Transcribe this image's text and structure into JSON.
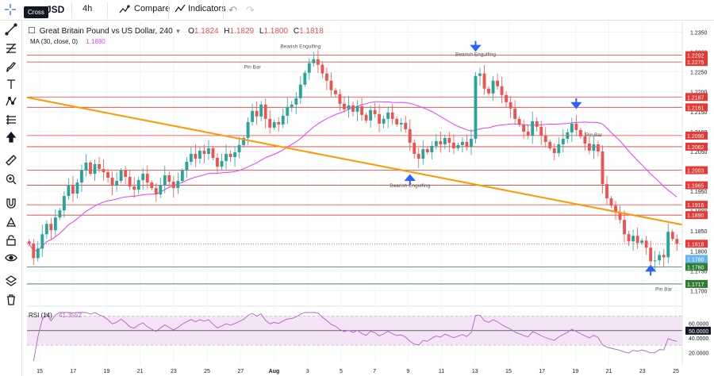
{
  "topbar": {
    "symbol_fragment": "JSD",
    "interval": "4h",
    "compare_label": "Compare",
    "indicators_label": "Indicators"
  },
  "tooltip": "Cross",
  "legend": {
    "title": "Great Britain Pound vs US Dollar, 240",
    "open_label": "O",
    "open": "1.1824",
    "high_label": "H",
    "high": "1.1829",
    "low_label": "L",
    "low": "1.1800",
    "close_label": "C",
    "close": "1.1818",
    "ma_label": "MA (30, close, 0)",
    "ma_value": "1.1880",
    "rsi_label": "RSI (14)",
    "rsi_value": "41.3552"
  },
  "colors": {
    "up": "#26a69a",
    "down": "#ef5350",
    "ma": "#e040fb",
    "trend": "#ff9800",
    "resistance": "#e53935",
    "support": "#2e7d32",
    "rsi_line": "#b45fc4",
    "rsi_fill": "#f3e5f5",
    "arrow": "#2962ff"
  },
  "chart_data": {
    "type": "candlestick",
    "symbol": "Great Britain Pound vs US Dollar",
    "interval": "240",
    "ylim": [
      1.1665,
      1.2375
    ],
    "x_ticks": [
      "15",
      "17",
      "19",
      "21",
      "23",
      "25",
      "27",
      "Aug",
      "3",
      "5",
      "7",
      "9",
      "11",
      "13",
      "15",
      "17",
      "19",
      "21",
      "23",
      "25"
    ],
    "y_ticks": [
      "1.2350",
      "1.2300",
      "1.2250",
      "1.2200",
      "1.2150",
      "1.2100",
      "1.2050",
      "1.2000",
      "1.1950",
      "1.1900",
      "1.1850",
      "1.1800",
      "1.1750",
      "1.1700"
    ],
    "closes": [
      1.1818,
      1.1782,
      1.1806,
      1.1842,
      1.1868,
      1.1852,
      1.1884,
      1.1902,
      1.1938,
      1.1964,
      1.1944,
      1.1972,
      1.2002,
      1.2022,
      1.1994,
      1.2018,
      1.2006,
      1.1998,
      1.1984,
      1.1964,
      1.1976,
      1.2002,
      1.1986,
      1.1962,
      1.1954,
      1.1978,
      1.1994,
      1.1972,
      1.1958,
      1.1942,
      1.1966,
      1.199,
      1.1974,
      1.1958,
      1.1976,
      1.2002,
      1.2024,
      1.2044,
      1.2032,
      1.2052,
      1.2044,
      1.2058,
      1.2034,
      1.2012,
      1.2026,
      1.2044,
      1.2036,
      1.2048,
      1.2066,
      1.2084,
      1.2124,
      1.2152,
      1.2138,
      1.2168,
      1.2132,
      1.211,
      1.2124,
      1.2118,
      1.214,
      1.2162,
      1.2168,
      1.2184,
      1.2218,
      1.2248,
      1.2272,
      1.2282,
      1.2268,
      1.2246,
      1.2228,
      1.2204,
      1.2194,
      1.217,
      1.2156,
      1.2166,
      1.215,
      1.2164,
      1.2142,
      1.2128,
      1.2154,
      1.2144,
      1.212,
      1.2132,
      1.2148,
      1.2132,
      1.2118,
      1.2122,
      1.2106,
      1.2072,
      1.2044,
      1.2032,
      1.2056,
      1.2048,
      1.2064,
      1.2076,
      1.2068,
      1.2084,
      1.2072,
      1.2058,
      1.2066,
      1.2074,
      1.2062,
      1.2082,
      1.224,
      1.2246,
      1.2208,
      1.2196,
      1.2228,
      1.2214,
      1.2192,
      1.2174,
      1.2158,
      1.2132,
      1.2118,
      1.21,
      1.209,
      1.2126,
      1.2112,
      1.209,
      1.2074,
      1.2058,
      1.2046,
      1.2068,
      1.2082,
      1.2098,
      1.212,
      1.2104,
      1.2088,
      1.207,
      1.2052,
      1.2068,
      1.205,
      1.1968,
      1.1932,
      1.1914,
      1.1896,
      1.1878,
      1.1842,
      1.1824,
      1.1838,
      1.182,
      1.1826,
      1.1808,
      1.1774,
      1.1776,
      1.179,
      1.1784,
      1.1848,
      1.183,
      1.1818
    ],
    "moving_average": {
      "period": 30,
      "last": 1.188
    },
    "horizontal_levels": {
      "resistance": [
        1.2292,
        1.2275,
        1.2187,
        1.2161,
        1.209,
        1.2062,
        1.2003,
        1.1965,
        1.1916,
        1.189
      ],
      "support": [
        1.176,
        1.1717
      ],
      "dotted_current": 1.1818
    },
    "support_labels": [
      "1.1760",
      "1.1717"
    ],
    "support_tag_extra": "1.1760",
    "current_price_tag": "1.1818",
    "trendline": {
      "from_index": 0,
      "from_price": 1.2186,
      "to_index": 149,
      "to_price": 1.1866
    },
    "annotations": [
      {
        "text": "Bearish Engulfing",
        "index": 62,
        "price": 1.231
      },
      {
        "text": "Pin Bar",
        "index": 51,
        "price": 1.2258
      },
      {
        "text": "Bearish Engulfing",
        "index": 102,
        "price": 1.229
      },
      {
        "text": "Bearish Engulfing",
        "index": 87,
        "price": 1.196
      },
      {
        "text": "Pin Bar",
        "index": 129,
        "price": 1.2088
      },
      {
        "text": "Pin Bar",
        "index": 145,
        "price": 1.17
      }
    ],
    "rsi": {
      "period": 14,
      "last": 41.3552,
      "y_ticks": [
        "60.0000",
        "50.0000",
        "40.0000",
        "20.0000"
      ],
      "band_upper": 70,
      "band_lower": 30
    }
  }
}
